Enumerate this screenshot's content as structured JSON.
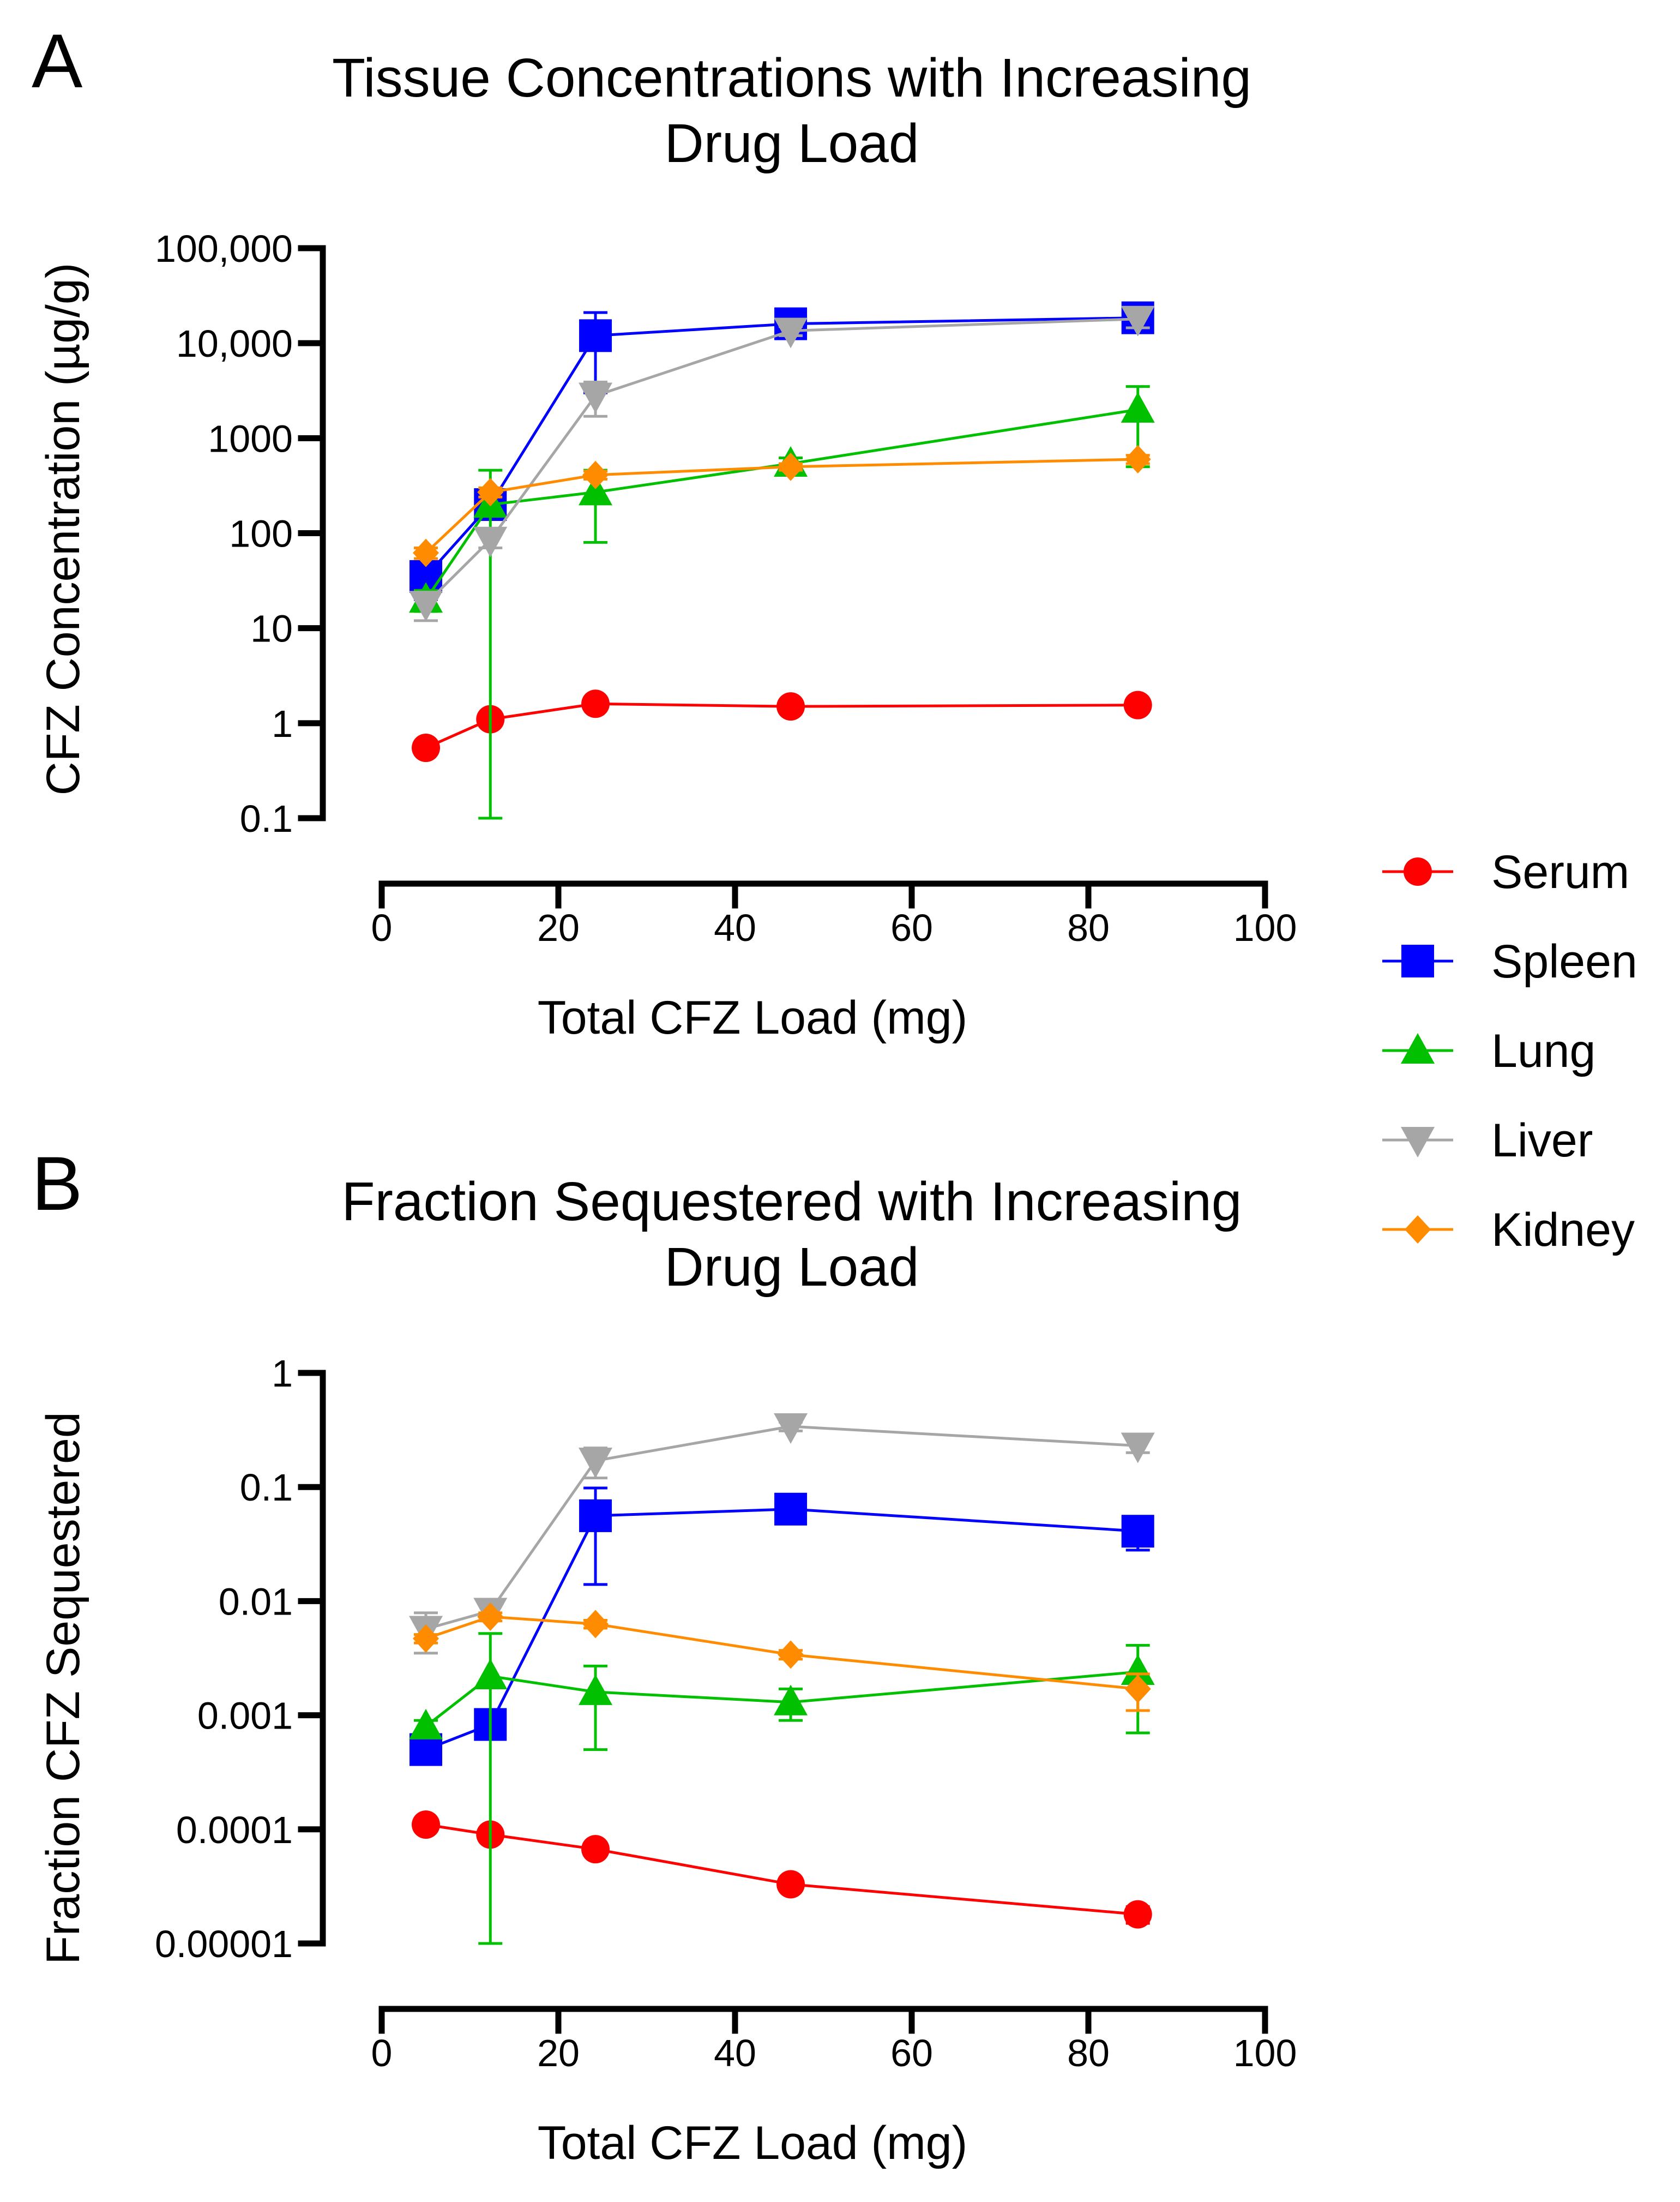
{
  "chart_data": [
    {
      "panel": "A",
      "type": "line",
      "title": [
        "Tissue Concentrations with Increasing",
        "Drug Load"
      ],
      "xlabel": "Total CFZ Load (mg)",
      "ylabel": "CFZ Concentration (µg/g)",
      "xlim": [
        0,
        100
      ],
      "ylim": [
        0.1,
        100000
      ],
      "yscale": "log",
      "xticks": [
        0,
        20,
        40,
        60,
        80,
        100
      ],
      "xtick_labels": [
        "0",
        "20",
        "40",
        "60",
        "80",
        "100"
      ],
      "yticks": [
        0.1,
        1,
        10,
        100,
        1000,
        10000,
        100000
      ],
      "ytick_labels": [
        "0.1",
        "1",
        "10",
        "100",
        "1000",
        "10,000",
        "100,000"
      ],
      "x": [
        5,
        12.3,
        24.2,
        46.3,
        85.6
      ],
      "series": [
        {
          "name": "Serum",
          "color": "#ff0000",
          "marker": "circle",
          "values": [
            0.55,
            1.1,
            1.6,
            1.5,
            1.55
          ],
          "err": [
            0,
            0,
            0,
            0,
            0
          ]
        },
        {
          "name": "Spleen",
          "color": "#0000ff",
          "marker": "square",
          "values": [
            35,
            200,
            12000,
            16000,
            18500
          ],
          "err": [
            15,
            60,
            9000,
            2500,
            5000
          ]
        },
        {
          "name": "Lung",
          "color": "#00c000",
          "marker": "triangle-up",
          "values": [
            20,
            200,
            270,
            540,
            2000
          ],
          "err": [
            5,
            260,
            190,
            80,
            1500
          ]
        },
        {
          "name": "Liver",
          "color": "#a6a6a6",
          "marker": "triangle-down",
          "values": [
            18,
            85,
            2800,
            13500,
            18000
          ],
          "err": [
            6,
            15,
            1100,
            1500,
            3500
          ]
        },
        {
          "name": "Kidney",
          "color": "#ff8c00",
          "marker": "diamond",
          "values": [
            62,
            270,
            410,
            500,
            600
          ],
          "err": [
            8,
            30,
            40,
            40,
            60
          ]
        }
      ]
    },
    {
      "panel": "B",
      "type": "line",
      "title": [
        "Fraction Sequestered with Increasing",
        "Drug Load"
      ],
      "xlabel": "Total CFZ Load (mg)",
      "ylabel": "Fraction CFZ Sequestered",
      "xlim": [
        0,
        100
      ],
      "ylim": [
        1e-05,
        1
      ],
      "yscale": "log",
      "xticks": [
        0,
        20,
        40,
        60,
        80,
        100
      ],
      "xtick_labels": [
        "0",
        "20",
        "40",
        "60",
        "80",
        "100"
      ],
      "yticks": [
        1e-05,
        0.0001,
        0.001,
        0.01,
        0.1,
        1
      ],
      "ytick_labels": [
        "0.00001",
        "0.0001",
        "0.001",
        "0.01",
        "0.1",
        "1"
      ],
      "x": [
        5,
        12.3,
        24.2,
        46.3,
        85.6
      ],
      "series": [
        {
          "name": "Serum",
          "color": "#ff0000",
          "marker": "circle",
          "values": [
            0.00011,
            9e-05,
            6.7e-05,
            3.3e-05,
            1.8e-05
          ],
          "err": [
            5e-06,
            5e-06,
            5e-06,
            3e-06,
            3e-06
          ]
        },
        {
          "name": "Spleen",
          "color": "#0000ff",
          "marker": "square",
          "values": [
            0.0005,
            0.00083,
            0.056,
            0.064,
            0.041
          ],
          "err": [
            0.0001,
            0.0002,
            0.042,
            0.006,
            0.013
          ]
        },
        {
          "name": "Lung",
          "color": "#00c000",
          "marker": "triangle-up",
          "values": [
            0.0008,
            0.0022,
            0.0016,
            0.0013,
            0.0024
          ],
          "err": [
            0.0001,
            0.003,
            0.0011,
            0.0004,
            0.0017
          ]
        },
        {
          "name": "Liver",
          "color": "#a6a6a6",
          "marker": "triangle-down",
          "values": [
            0.0057,
            0.0082,
            0.17,
            0.34,
            0.23
          ],
          "err": [
            0.0022,
            0.001,
            0.05,
            0.03,
            0.03
          ]
        },
        {
          "name": "Kidney",
          "color": "#ff8c00",
          "marker": "diamond",
          "values": [
            0.0047,
            0.0073,
            0.0063,
            0.0034,
            0.0017
          ],
          "err": [
            0.0004,
            0.0006,
            0.0005,
            0.0003,
            0.0006
          ]
        }
      ]
    }
  ],
  "legend": {
    "position": "right",
    "items": [
      {
        "name": "Serum",
        "color": "#ff0000",
        "marker": "circle"
      },
      {
        "name": "Spleen",
        "color": "#0000ff",
        "marker": "square"
      },
      {
        "name": "Lung",
        "color": "#00c000",
        "marker": "triangle-up"
      },
      {
        "name": "Liver",
        "color": "#a6a6a6",
        "marker": "triangle-down"
      },
      {
        "name": "Kidney",
        "color": "#ff8c00",
        "marker": "diamond"
      }
    ]
  }
}
